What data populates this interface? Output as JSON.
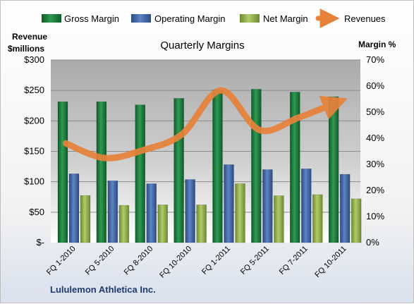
{
  "chart_data": {
    "type": "bar",
    "title": "Quarterly Margins",
    "ylabel_left": [
      "Revenue",
      "$millions"
    ],
    "ylabel_right": "Margin %",
    "categories": [
      "FQ 1-2010",
      "FQ 5-2010",
      "FQ 8-2010",
      "FQ 10-2010",
      "FQ 1-2011",
      "FQ 5-2011",
      "FQ 7-2011",
      "FQ 10-2011"
    ],
    "left_ticks": [
      "$-",
      "$50",
      "$100",
      "$150",
      "$200",
      "$250",
      "$300"
    ],
    "right_ticks": [
      "0%",
      "10%",
      "20%",
      "30%",
      "40%",
      "50%",
      "60%",
      "70%"
    ],
    "ylim_left": [
      0,
      300
    ],
    "ylim_right": [
      0,
      70
    ],
    "series": [
      {
        "name": "Gross Margin",
        "kind": "bar",
        "axis": "right",
        "color": "#1e7a3c",
        "values": [
          54,
          54,
          52.8,
          55.3,
          58.5,
          58.8,
          57.7,
          55.9
        ]
      },
      {
        "name": "Operating Margin",
        "kind": "bar",
        "axis": "right",
        "color": "#3f65a6",
        "values": [
          26.4,
          23.7,
          22.6,
          24.2,
          29.9,
          28,
          28.3,
          26.2
        ]
      },
      {
        "name": "Net Margin",
        "kind": "bar",
        "axis": "right",
        "color": "#8fae4a",
        "values": [
          18.1,
          14.3,
          14.5,
          14.5,
          22.6,
          18,
          18.4,
          16.8
        ]
      },
      {
        "name": "Revenues",
        "kind": "line",
        "axis": "left",
        "color": "#e7823a",
        "values": [
          163,
          139,
          152,
          178,
          250,
          185,
          205,
          230
        ]
      }
    ],
    "legend_position": "top",
    "grid": true
  },
  "company": "Lululemon Athletica Inc."
}
